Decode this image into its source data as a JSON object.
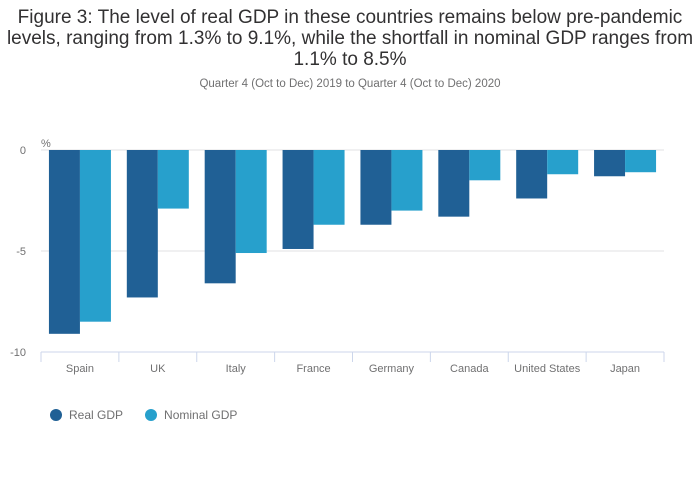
{
  "chart_data": {
    "type": "bar",
    "title": "Figure 3: The level of real GDP in these countries remains below pre-pandemic levels, ranging from 1.3% to 9.1%, while the shortfall in nominal GDP ranges from 1.1% to 8.5%",
    "subtitle": "Quarter 4 (Oct to Dec) 2019 to Quarter 4 (Oct to Dec) 2020",
    "ylabel": "%",
    "xlabel": "",
    "ylim": [
      -10,
      0
    ],
    "yticks": [
      0,
      -5,
      -10
    ],
    "grid": true,
    "legend_position": "bottom-left",
    "categories": [
      "Spain",
      "UK",
      "Italy",
      "France",
      "Germany",
      "Canada",
      "United States",
      "Japan"
    ],
    "series": [
      {
        "name": "Real GDP",
        "color": "#206095",
        "values": [
          -9.1,
          -7.3,
          -6.6,
          -4.9,
          -3.7,
          -3.3,
          -2.4,
          -1.3
        ]
      },
      {
        "name": "Nominal GDP",
        "color": "#27a0cc",
        "values": [
          -8.5,
          -2.9,
          -5.1,
          -3.7,
          -3.0,
          -1.5,
          -1.2,
          -1.1
        ]
      }
    ]
  }
}
